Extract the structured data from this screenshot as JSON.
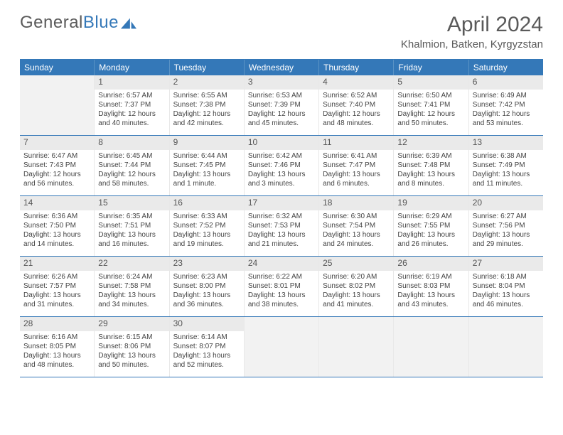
{
  "brand": {
    "name_a": "General",
    "name_b": "Blue"
  },
  "title": "April 2024",
  "location": "Khalmion, Batken, Kyrgyzstan",
  "colors": {
    "header_blue": "#3478b8",
    "daynum_bg": "#eaeaea",
    "empty_bg": "#f2f2f2",
    "text": "#444444",
    "title_text": "#5a5a5a"
  },
  "weekdays": [
    "Sunday",
    "Monday",
    "Tuesday",
    "Wednesday",
    "Thursday",
    "Friday",
    "Saturday"
  ],
  "weeks": [
    [
      null,
      {
        "n": "1",
        "sr": "6:57 AM",
        "ss": "7:37 PM",
        "dl": "12 hours and 40 minutes."
      },
      {
        "n": "2",
        "sr": "6:55 AM",
        "ss": "7:38 PM",
        "dl": "12 hours and 42 minutes."
      },
      {
        "n": "3",
        "sr": "6:53 AM",
        "ss": "7:39 PM",
        "dl": "12 hours and 45 minutes."
      },
      {
        "n": "4",
        "sr": "6:52 AM",
        "ss": "7:40 PM",
        "dl": "12 hours and 48 minutes."
      },
      {
        "n": "5",
        "sr": "6:50 AM",
        "ss": "7:41 PM",
        "dl": "12 hours and 50 minutes."
      },
      {
        "n": "6",
        "sr": "6:49 AM",
        "ss": "7:42 PM",
        "dl": "12 hours and 53 minutes."
      }
    ],
    [
      {
        "n": "7",
        "sr": "6:47 AM",
        "ss": "7:43 PM",
        "dl": "12 hours and 56 minutes."
      },
      {
        "n": "8",
        "sr": "6:45 AM",
        "ss": "7:44 PM",
        "dl": "12 hours and 58 minutes."
      },
      {
        "n": "9",
        "sr": "6:44 AM",
        "ss": "7:45 PM",
        "dl": "13 hours and 1 minute."
      },
      {
        "n": "10",
        "sr": "6:42 AM",
        "ss": "7:46 PM",
        "dl": "13 hours and 3 minutes."
      },
      {
        "n": "11",
        "sr": "6:41 AM",
        "ss": "7:47 PM",
        "dl": "13 hours and 6 minutes."
      },
      {
        "n": "12",
        "sr": "6:39 AM",
        "ss": "7:48 PM",
        "dl": "13 hours and 8 minutes."
      },
      {
        "n": "13",
        "sr": "6:38 AM",
        "ss": "7:49 PM",
        "dl": "13 hours and 11 minutes."
      }
    ],
    [
      {
        "n": "14",
        "sr": "6:36 AM",
        "ss": "7:50 PM",
        "dl": "13 hours and 14 minutes."
      },
      {
        "n": "15",
        "sr": "6:35 AM",
        "ss": "7:51 PM",
        "dl": "13 hours and 16 minutes."
      },
      {
        "n": "16",
        "sr": "6:33 AM",
        "ss": "7:52 PM",
        "dl": "13 hours and 19 minutes."
      },
      {
        "n": "17",
        "sr": "6:32 AM",
        "ss": "7:53 PM",
        "dl": "13 hours and 21 minutes."
      },
      {
        "n": "18",
        "sr": "6:30 AM",
        "ss": "7:54 PM",
        "dl": "13 hours and 24 minutes."
      },
      {
        "n": "19",
        "sr": "6:29 AM",
        "ss": "7:55 PM",
        "dl": "13 hours and 26 minutes."
      },
      {
        "n": "20",
        "sr": "6:27 AM",
        "ss": "7:56 PM",
        "dl": "13 hours and 29 minutes."
      }
    ],
    [
      {
        "n": "21",
        "sr": "6:26 AM",
        "ss": "7:57 PM",
        "dl": "13 hours and 31 minutes."
      },
      {
        "n": "22",
        "sr": "6:24 AM",
        "ss": "7:58 PM",
        "dl": "13 hours and 34 minutes."
      },
      {
        "n": "23",
        "sr": "6:23 AM",
        "ss": "8:00 PM",
        "dl": "13 hours and 36 minutes."
      },
      {
        "n": "24",
        "sr": "6:22 AM",
        "ss": "8:01 PM",
        "dl": "13 hours and 38 minutes."
      },
      {
        "n": "25",
        "sr": "6:20 AM",
        "ss": "8:02 PM",
        "dl": "13 hours and 41 minutes."
      },
      {
        "n": "26",
        "sr": "6:19 AM",
        "ss": "8:03 PM",
        "dl": "13 hours and 43 minutes."
      },
      {
        "n": "27",
        "sr": "6:18 AM",
        "ss": "8:04 PM",
        "dl": "13 hours and 46 minutes."
      }
    ],
    [
      {
        "n": "28",
        "sr": "6:16 AM",
        "ss": "8:05 PM",
        "dl": "13 hours and 48 minutes."
      },
      {
        "n": "29",
        "sr": "6:15 AM",
        "ss": "8:06 PM",
        "dl": "13 hours and 50 minutes."
      },
      {
        "n": "30",
        "sr": "6:14 AM",
        "ss": "8:07 PM",
        "dl": "13 hours and 52 minutes."
      },
      null,
      null,
      null,
      null
    ]
  ],
  "labels": {
    "sunrise": "Sunrise:",
    "sunset": "Sunset:",
    "daylight": "Daylight:"
  }
}
